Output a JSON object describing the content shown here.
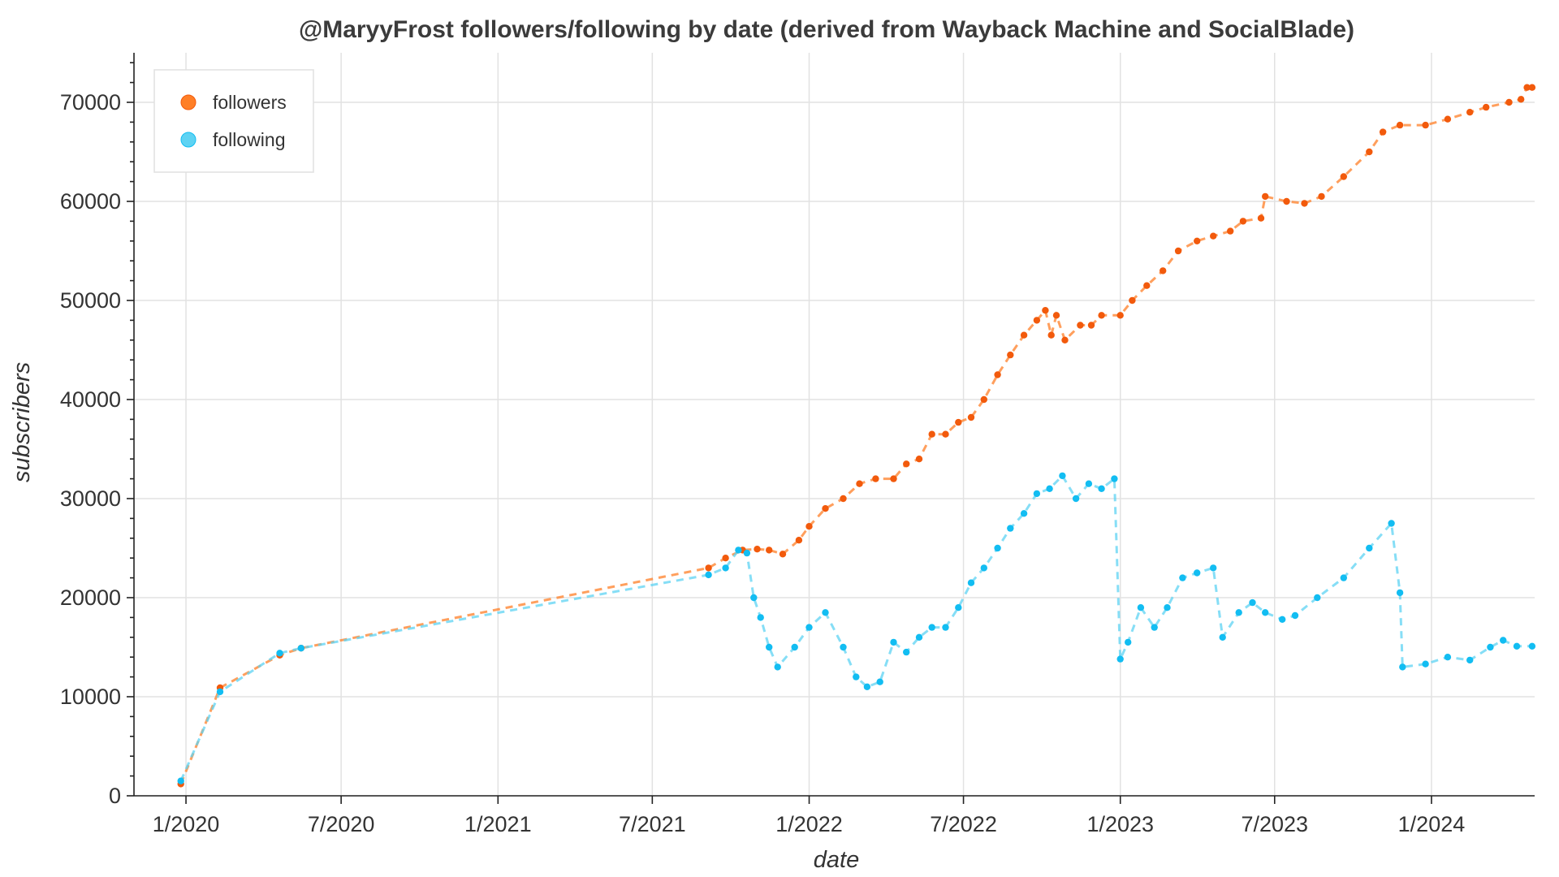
{
  "chart_data": {
    "type": "scatter",
    "title": "@MaryyFrost followers/following by date (derived from Wayback Machine and SocialBlade)",
    "xlabel": "date",
    "ylabel": "subscribers",
    "x_ticks": [
      "2020-01-01",
      "2020-07-01",
      "2021-01-01",
      "2021-07-01",
      "2022-01-01",
      "2022-07-01",
      "2023-01-01",
      "2023-07-01",
      "2024-01-01"
    ],
    "x_tick_labels": [
      "1/2020",
      "7/2020",
      "1/2021",
      "7/2021",
      "1/2022",
      "7/2022",
      "1/2023",
      "7/2023",
      "1/2024"
    ],
    "xlim": [
      "2019-11-01",
      "2024-05-01"
    ],
    "y_ticks": [
      0,
      10000,
      20000,
      30000,
      40000,
      50000,
      60000,
      70000
    ],
    "y_tick_labels": [
      "0",
      "10000",
      "20000",
      "30000",
      "40000",
      "50000",
      "60000",
      "70000"
    ],
    "ylim": [
      0,
      75000
    ],
    "grid": true,
    "legend_position": "top-left",
    "connector_style": "dashed",
    "series": [
      {
        "name": "followers",
        "color": "#ff7f27",
        "marker_color": "#f25a0c",
        "points": [
          [
            "2019-12-26",
            1200
          ],
          [
            "2020-02-10",
            10900
          ],
          [
            "2020-04-20",
            14200
          ],
          [
            "2020-05-15",
            14900
          ],
          [
            "2021-09-05",
            23000
          ],
          [
            "2021-09-25",
            24000
          ],
          [
            "2021-10-15",
            24800
          ],
          [
            "2021-11-01",
            24900
          ],
          [
            "2021-11-15",
            24800
          ],
          [
            "2021-12-01",
            24400
          ],
          [
            "2021-12-20",
            25800
          ],
          [
            "2022-01-01",
            27200
          ],
          [
            "2022-01-20",
            29000
          ],
          [
            "2022-02-10",
            30000
          ],
          [
            "2022-03-01",
            31500
          ],
          [
            "2022-03-20",
            32000
          ],
          [
            "2022-04-10",
            32000
          ],
          [
            "2022-04-25",
            33500
          ],
          [
            "2022-05-10",
            34000
          ],
          [
            "2022-05-25",
            36500
          ],
          [
            "2022-06-10",
            36500
          ],
          [
            "2022-06-25",
            37700
          ],
          [
            "2022-07-10",
            38200
          ],
          [
            "2022-07-25",
            40000
          ],
          [
            "2022-08-10",
            42500
          ],
          [
            "2022-08-25",
            44500
          ],
          [
            "2022-09-10",
            46500
          ],
          [
            "2022-09-25",
            48000
          ],
          [
            "2022-10-05",
            49000
          ],
          [
            "2022-10-12",
            46500
          ],
          [
            "2022-10-18",
            48500
          ],
          [
            "2022-10-28",
            46000
          ],
          [
            "2022-11-15",
            47500
          ],
          [
            "2022-11-28",
            47500
          ],
          [
            "2022-12-10",
            48500
          ],
          [
            "2023-01-01",
            48500
          ],
          [
            "2023-01-15",
            50000
          ],
          [
            "2023-02-01",
            51500
          ],
          [
            "2023-02-20",
            53000
          ],
          [
            "2023-03-10",
            55000
          ],
          [
            "2023-04-01",
            56000
          ],
          [
            "2023-04-20",
            56500
          ],
          [
            "2023-05-10",
            57000
          ],
          [
            "2023-05-25",
            58000
          ],
          [
            "2023-06-15",
            58300
          ],
          [
            "2023-06-20",
            60500
          ],
          [
            "2023-07-15",
            60000
          ],
          [
            "2023-08-05",
            59800
          ],
          [
            "2023-08-25",
            60500
          ],
          [
            "2023-09-20",
            62500
          ],
          [
            "2023-10-20",
            65000
          ],
          [
            "2023-11-05",
            67000
          ],
          [
            "2023-11-25",
            67700
          ],
          [
            "2023-12-25",
            67700
          ],
          [
            "2024-01-20",
            68300
          ],
          [
            "2024-02-15",
            69000
          ],
          [
            "2024-03-05",
            69500
          ],
          [
            "2024-04-01",
            70000
          ],
          [
            "2024-04-15",
            70300
          ],
          [
            "2024-04-22",
            71500
          ],
          [
            "2024-04-28",
            71500
          ]
        ]
      },
      {
        "name": "following",
        "color": "#5ed3f3",
        "marker_color": "#12bdf2",
        "points": [
          [
            "2019-12-26",
            1500
          ],
          [
            "2020-02-10",
            10500
          ],
          [
            "2020-04-20",
            14400
          ],
          [
            "2020-05-15",
            14900
          ],
          [
            "2021-09-05",
            22300
          ],
          [
            "2021-09-25",
            23000
          ],
          [
            "2021-10-10",
            24800
          ],
          [
            "2021-10-20",
            24500
          ],
          [
            "2021-10-28",
            20000
          ],
          [
            "2021-11-05",
            18000
          ],
          [
            "2021-11-15",
            15000
          ],
          [
            "2021-11-25",
            13000
          ],
          [
            "2021-12-15",
            15000
          ],
          [
            "2022-01-01",
            17000
          ],
          [
            "2022-01-20",
            18500
          ],
          [
            "2022-02-10",
            15000
          ],
          [
            "2022-02-25",
            12000
          ],
          [
            "2022-03-10",
            11000
          ],
          [
            "2022-03-25",
            11500
          ],
          [
            "2022-04-10",
            15500
          ],
          [
            "2022-04-25",
            14500
          ],
          [
            "2022-05-10",
            16000
          ],
          [
            "2022-05-25",
            17000
          ],
          [
            "2022-06-10",
            17000
          ],
          [
            "2022-06-25",
            19000
          ],
          [
            "2022-07-10",
            21500
          ],
          [
            "2022-07-25",
            23000
          ],
          [
            "2022-08-10",
            25000
          ],
          [
            "2022-08-25",
            27000
          ],
          [
            "2022-09-10",
            28500
          ],
          [
            "2022-09-25",
            30500
          ],
          [
            "2022-10-10",
            31000
          ],
          [
            "2022-10-25",
            32300
          ],
          [
            "2022-11-10",
            30000
          ],
          [
            "2022-11-25",
            31500
          ],
          [
            "2022-12-10",
            31000
          ],
          [
            "2022-12-25",
            32000
          ],
          [
            "2023-01-01",
            13800
          ],
          [
            "2023-01-10",
            15500
          ],
          [
            "2023-01-25",
            19000
          ],
          [
            "2023-02-10",
            17000
          ],
          [
            "2023-02-25",
            19000
          ],
          [
            "2023-03-15",
            22000
          ],
          [
            "2023-04-01",
            22500
          ],
          [
            "2023-04-20",
            23000
          ],
          [
            "2023-05-01",
            16000
          ],
          [
            "2023-05-20",
            18500
          ],
          [
            "2023-06-05",
            19500
          ],
          [
            "2023-06-20",
            18500
          ],
          [
            "2023-07-10",
            17800
          ],
          [
            "2023-07-25",
            18200
          ],
          [
            "2023-08-20",
            20000
          ],
          [
            "2023-09-20",
            22000
          ],
          [
            "2023-10-20",
            25000
          ],
          [
            "2023-11-15",
            27500
          ],
          [
            "2023-11-25",
            20500
          ],
          [
            "2023-11-28",
            13000
          ],
          [
            "2023-12-25",
            13300
          ],
          [
            "2024-01-20",
            14000
          ],
          [
            "2024-02-15",
            13700
          ],
          [
            "2024-03-10",
            15000
          ],
          [
            "2024-03-25",
            15700
          ],
          [
            "2024-04-10",
            15100
          ],
          [
            "2024-04-28",
            15100
          ]
        ]
      }
    ]
  }
}
